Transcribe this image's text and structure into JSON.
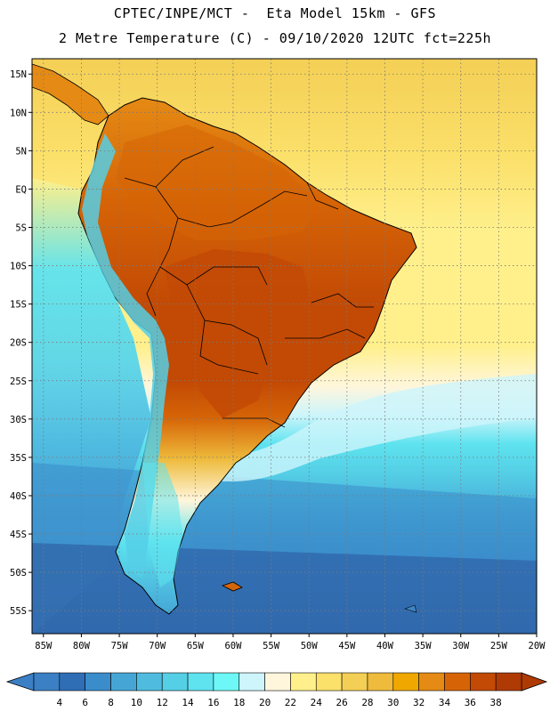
{
  "header": {
    "line1": "CPTEC/INPE/MCT -  Eta Model 15km - GFS",
    "line2": "2 Metre Temperature (C) - 09/10/2020 12UTC fct=225h"
  },
  "map": {
    "lat_labels": [
      "15N",
      "10N",
      "5N",
      "EQ",
      "5S",
      "10S",
      "15S",
      "20S",
      "25S",
      "30S",
      "35S",
      "40S",
      "45S",
      "50S",
      "55S"
    ],
    "lon_labels": [
      "85W",
      "80W",
      "75W",
      "70W",
      "65W",
      "60W",
      "55W",
      "50W",
      "45W",
      "40W",
      "35W",
      "30W",
      "25W",
      "20W"
    ],
    "extent": {
      "lon_min": -86.5,
      "lon_max": -20,
      "lat_min": -58,
      "lat_max": 17
    }
  },
  "colorbar": {
    "values": [
      "4",
      "6",
      "8",
      "10",
      "12",
      "14",
      "16",
      "18",
      "20",
      "22",
      "24",
      "26",
      "28",
      "30",
      "32",
      "34",
      "36",
      "38"
    ],
    "colors": [
      "#3b7fc4",
      "#2f6eb5",
      "#3a8ccb",
      "#45a6d6",
      "#4fbcdf",
      "#55cfe6",
      "#5ee3ef",
      "#6ef7f7",
      "#cdf5fb",
      "#fff6dc",
      "#fff08c",
      "#fbe06a",
      "#f4cf55",
      "#eebb3c",
      "#f0a800",
      "#e58a14",
      "#d66406",
      "#c24a05",
      "#b03a04"
    ],
    "low_color": "#3b7fc4",
    "high_color": "#b03a04"
  },
  "colors": {
    "ocean_deep": "#2f62a6",
    "ocean_mid": "#3c86c8",
    "ocean_light": "#48a7d8",
    "ocean_cyan": "#5ad6ea",
    "land_hot": "#c24a05",
    "land_warm": "#d66406",
    "land_mild": "#e58a14",
    "andes": "#55cfe6",
    "north_yellow": "#f4cf55"
  }
}
